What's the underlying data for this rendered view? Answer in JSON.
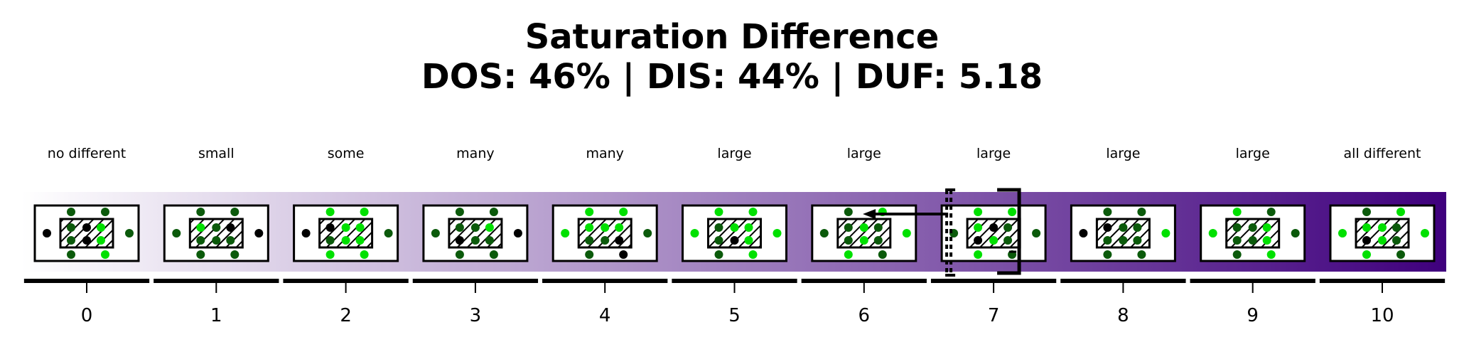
{
  "title_line1": "Saturation Difference",
  "title_line2": "DOS: 46% | DIS: 44% | DUF: 5.18",
  "gradient": {
    "start_color": "#ffffff",
    "end_color": "#3f007d"
  },
  "dot_colors": {
    "black": "#000000",
    "dark": "#0b5a0b",
    "bright": "#00e000"
  },
  "highlight_bin": 7,
  "bins": [
    {
      "tick": "0",
      "label": "no different",
      "dots": [
        "dark",
        "dark",
        "black",
        "dark",
        "dark",
        "black",
        "bright",
        "dark",
        "black",
        "bright"
      ]
    },
    {
      "tick": "1",
      "label": "small",
      "dots": [
        "dark",
        "dark",
        "dark",
        "black",
        "bright",
        "dark",
        "black",
        "dark",
        "dark",
        "dark"
      ]
    },
    {
      "tick": "2",
      "label": "some",
      "dots": [
        "bright",
        "bright",
        "black",
        "dark",
        "black",
        "bright",
        "bright",
        "dark",
        "bright",
        "bright"
      ]
    },
    {
      "tick": "3",
      "label": "many",
      "dots": [
        "dark",
        "dark",
        "dark",
        "black",
        "dark",
        "dark",
        "bright",
        "black",
        "dark",
        "dark"
      ]
    },
    {
      "tick": "4",
      "label": "many",
      "dots": [
        "bright",
        "bright",
        "bright",
        "dark",
        "bright",
        "bright",
        "bright",
        "dark",
        "dark",
        "black"
      ]
    },
    {
      "tick": "5",
      "label": "large",
      "dots": [
        "bright",
        "bright",
        "bright",
        "bright",
        "dark",
        "bright",
        "bright",
        "dark",
        "black",
        "bright"
      ]
    },
    {
      "tick": "6",
      "label": "large",
      "dots": [
        "dark",
        "bright",
        "dark",
        "bright",
        "dark",
        "bright",
        "dark",
        "dark",
        "bright",
        "dark"
      ]
    },
    {
      "tick": "7",
      "label": "large",
      "dots": [
        "bright",
        "bright",
        "dark",
        "dark",
        "bright",
        "black",
        "dark",
        "black",
        "bright",
        "dark"
      ]
    },
    {
      "tick": "8",
      "label": "large",
      "dots": [
        "dark",
        "dark",
        "black",
        "bright",
        "black",
        "dark",
        "dark",
        "dark",
        "dark",
        "dark"
      ]
    },
    {
      "tick": "9",
      "label": "large",
      "dots": [
        "bright",
        "dark",
        "bright",
        "dark",
        "dark",
        "dark",
        "bright",
        "dark",
        "dark",
        "bright"
      ]
    },
    {
      "tick": "10",
      "label": "all different",
      "dots": [
        "dark",
        "bright",
        "bright",
        "bright",
        "bright",
        "bright",
        "dark",
        "black",
        "bright",
        "dark"
      ]
    }
  ]
}
